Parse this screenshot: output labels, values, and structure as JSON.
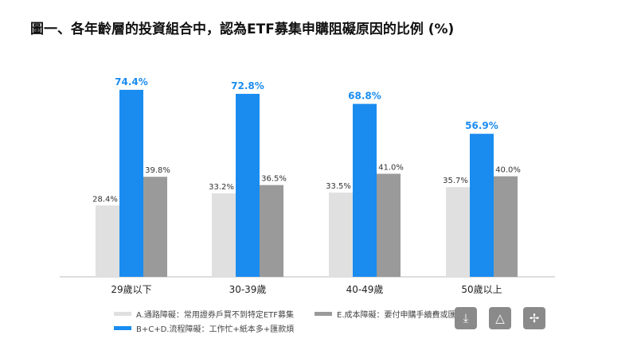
{
  "chart_data": {
    "type": "bar",
    "title": "圖一、各年齡層的投資組合中，認為ETF募集申購阻礙原因的比例 (%)",
    "categories": [
      "29歲以下",
      "30-39歲",
      "40-49歲",
      "50歲以上"
    ],
    "series": [
      {
        "name": "A.通路障礙：常用證券戶買不到特定ETF募集",
        "color": "#e0e0e0",
        "values": [
          28.4,
          33.2,
          33.5,
          35.7
        ],
        "labels": [
          "28.4%",
          "33.2%",
          "33.5%",
          "35.7%"
        ]
      },
      {
        "name": "B+C+D.流程障礙：工作忙+紙本多+匯款煩",
        "color": "#1a8cf0",
        "values": [
          74.4,
          72.8,
          68.8,
          56.9
        ],
        "labels": [
          "74.4%",
          "72.8%",
          "68.8%",
          "56.9%"
        ]
      },
      {
        "name": "E.成本障礙：要付申購手續費或匯費",
        "color": "#9a9a9a",
        "values": [
          39.8,
          36.5,
          41.0,
          40.0
        ],
        "labels": [
          "39.8%",
          "36.5%",
          "41.0%",
          "40.0%"
        ]
      }
    ],
    "ylim": [
      0,
      80
    ],
    "grid": false,
    "legend": "bottom"
  },
  "buttons": {
    "download": "download-icon",
    "drive": "add-to-drive-icon",
    "share": "share-icon"
  }
}
